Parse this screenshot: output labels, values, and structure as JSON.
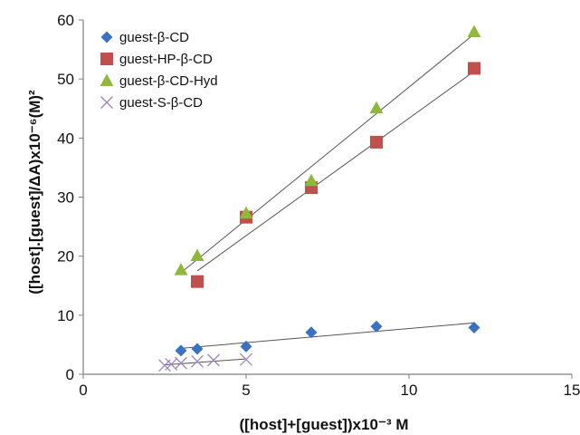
{
  "chart_data": {
    "type": "scatter",
    "title": "",
    "xlabel": "([host]+[guest])x10⁻³ M",
    "ylabel": "([host].[guest]/ΔA)x10⁻⁶(M)²",
    "xlim": [
      0,
      15
    ],
    "ylim": [
      0,
      60
    ],
    "x_ticks": [
      0,
      5,
      10,
      15
    ],
    "y_ticks": [
      0,
      10,
      20,
      30,
      40,
      50,
      60
    ],
    "grid": false,
    "legend_position": "top-left",
    "series": [
      {
        "name": "guest-β-CD",
        "marker": "diamond",
        "color": "#3b72c0",
        "points": [
          [
            3.0,
            4.0
          ],
          [
            3.5,
            4.3
          ],
          [
            5.0,
            4.7
          ],
          [
            7.0,
            7.1
          ],
          [
            9.0,
            8.1
          ],
          [
            12.0,
            7.9
          ]
        ],
        "trendline": [
          [
            3.0,
            4.4
          ],
          [
            12.0,
            8.7
          ]
        ]
      },
      {
        "name": "guest-HP-β-CD",
        "marker": "square",
        "color": "#c0504d",
        "points": [
          [
            3.5,
            15.7
          ],
          [
            5.0,
            26.6
          ],
          [
            7.0,
            31.6
          ],
          [
            9.0,
            39.3
          ],
          [
            12.0,
            51.8
          ]
        ],
        "trendline": [
          [
            3.5,
            17.5
          ],
          [
            12.0,
            51.3
          ]
        ]
      },
      {
        "name": "guest-β-CD-Hyd",
        "marker": "triangle",
        "color": "#8fb83c",
        "points": [
          [
            3.0,
            17.7
          ],
          [
            3.5,
            20.1
          ],
          [
            5.0,
            27.3
          ],
          [
            7.0,
            32.8
          ],
          [
            9.0,
            45.1
          ],
          [
            12.0,
            58.0
          ]
        ],
        "trendline": [
          [
            3.0,
            17.2
          ],
          [
            12.0,
            57.6
          ]
        ]
      },
      {
        "name": "guest-S-β-CD",
        "marker": "cross",
        "color": "#9b86bd",
        "points": [
          [
            2.5,
            1.5
          ],
          [
            2.7,
            1.7
          ],
          [
            3.0,
            1.9
          ],
          [
            3.5,
            2.2
          ],
          [
            4.0,
            2.4
          ],
          [
            5.0,
            2.5
          ]
        ],
        "trendline": [
          [
            2.5,
            1.6
          ],
          [
            5.0,
            2.6
          ]
        ]
      }
    ]
  }
}
